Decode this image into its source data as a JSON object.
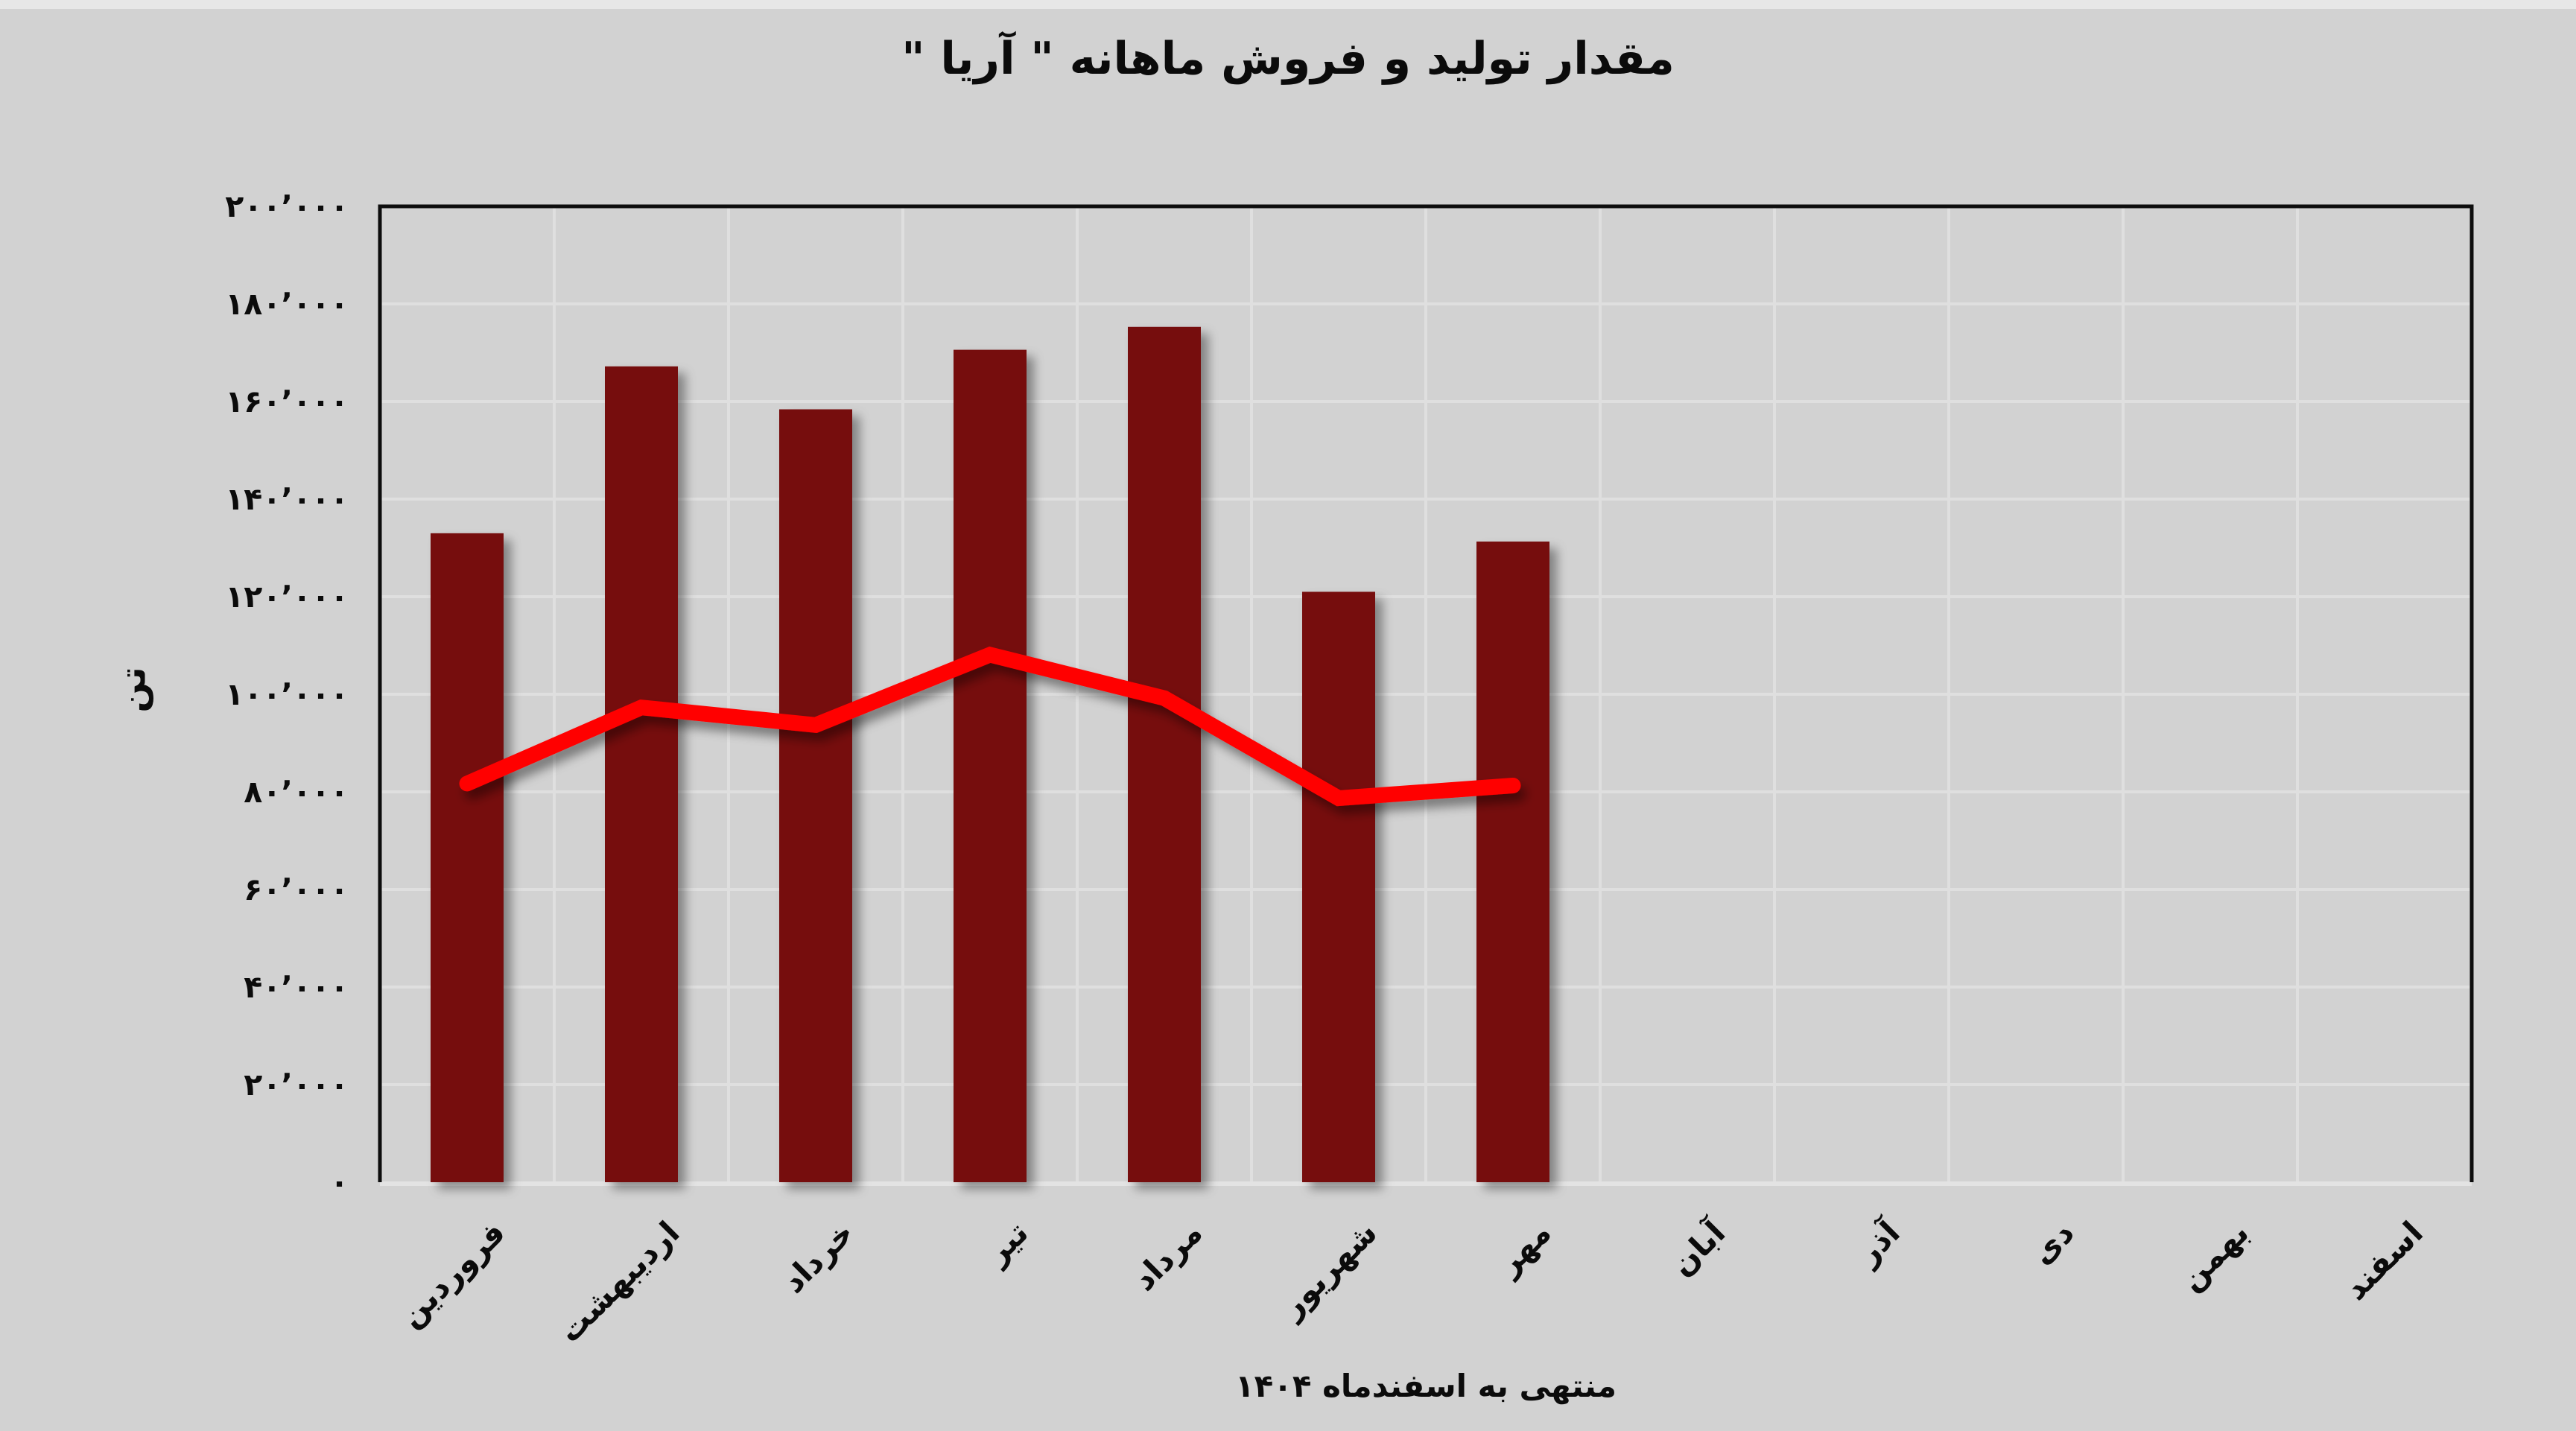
{
  "title": "مقدار تولید و فروش ماهانه \" آریا \"",
  "axes": {
    "y_title": "تن",
    "x_caption": "منتهی به اسفندماه ۱۴۰۴",
    "y_tick_labels_top_to_bottom": [
      "۲۰۰٬۰۰۰",
      "۱۸۰٬۰۰۰",
      "۱۶۰٬۰۰۰",
      "۱۴۰٬۰۰۰",
      "۱۲۰٬۰۰۰",
      "۱۰۰٬۰۰۰",
      "۸۰٬۰۰۰",
      "۶۰٬۰۰۰",
      "۴۰٬۰۰۰",
      "۲۰٬۰۰۰",
      "۰"
    ]
  },
  "colors": {
    "background": "#d2d2d2",
    "top_strip": "#e7e7e7",
    "bar_fill": "#760f11",
    "line_stroke": "#ff0000",
    "gridline": "#dfdfdf",
    "frame": "#0d0d0d",
    "bottom_axis": "#e3e3e3",
    "text": "#0b0b0b"
  },
  "chart_data": {
    "type": "bar",
    "subtype": "combo-bar-and-line",
    "title": "مقدار تولید و فروش ماهانه \" آریا \"",
    "xlabel": "منتهی به اسفندماه ۱۴۰۴",
    "ylabel": "تن",
    "categories": [
      "فروردین",
      "اردیبهشت",
      "خرداد",
      "تیر",
      "مرداد",
      "شهریور",
      "مهر",
      "آبان",
      "آذر",
      "دی",
      "بهمن",
      "اسفند"
    ],
    "series": [
      {
        "name": "bar-series",
        "type": "bar",
        "color": "#760f11",
        "values": [
          133000,
          167200,
          158400,
          170600,
          175300,
          121000,
          131300,
          null,
          null,
          null,
          null,
          null
        ]
      },
      {
        "name": "line-series",
        "type": "line",
        "color": "#ff0000",
        "values": [
          81700,
          97300,
          93700,
          108100,
          99200,
          78700,
          81300,
          null,
          null,
          null,
          null,
          null
        ]
      }
    ],
    "ylim": [
      0,
      200000
    ],
    "ytick_step": 20000,
    "grid": true,
    "legend": "none",
    "rtl": true
  }
}
